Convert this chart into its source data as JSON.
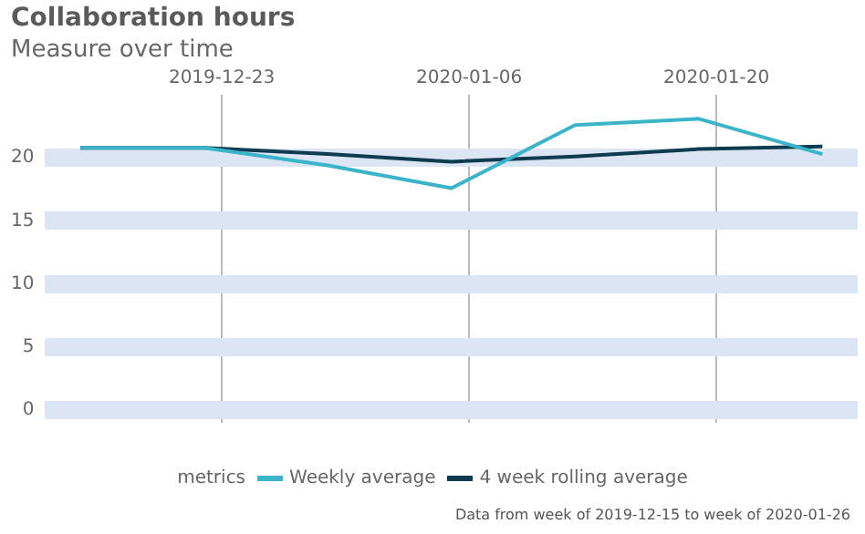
{
  "chart_data": {
    "type": "line",
    "title": "Collaboration hours",
    "subtitle": "Measure over time",
    "x": [
      "2019-12-15",
      "2019-12-22",
      "2019-12-29",
      "2020-01-05",
      "2020-01-12",
      "2020-01-19",
      "2020-01-26"
    ],
    "series": [
      {
        "name": "Weekly average",
        "color": "#3bb4c9",
        "values": [
          20.8,
          20.8,
          19.4,
          17.6,
          22.6,
          23.1,
          20.3
        ]
      },
      {
        "name": "4 week rolling average",
        "color": "#0d3b50",
        "values": [
          20.8,
          20.8,
          20.3,
          19.7,
          20.1,
          20.7,
          20.9
        ]
      }
    ],
    "xlim": [
      "2019-12-13",
      "2020-01-28"
    ],
    "xticks": [
      "2019-12-23",
      "2020-01-06",
      "2020-01-20"
    ],
    "ylim": [
      -1,
      25
    ],
    "yticks": [
      0,
      5,
      10,
      15,
      20
    ],
    "grid": true,
    "legend": "bottom",
    "legend_title": "metrics",
    "marker": "none",
    "line_style": "solid",
    "annotations": [
      "Data from week of 2019-12-15 to week of 2020-01-26"
    ]
  }
}
